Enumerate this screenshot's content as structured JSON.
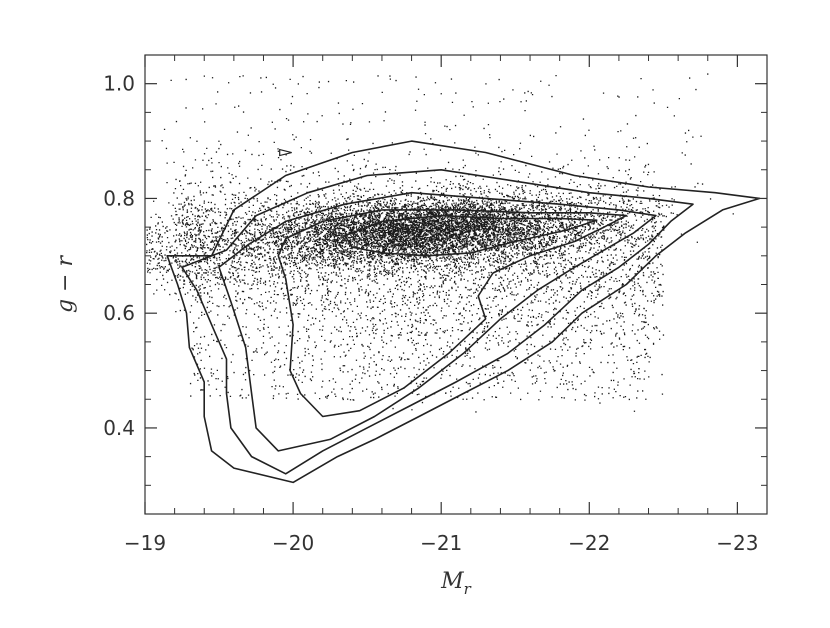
{
  "chart_data": {
    "type": "scatter",
    "title": "",
    "xlabel": {
      "main": "M",
      "sub": "r"
    },
    "ylabel": "g − r",
    "xlim": [
      -19,
      -23.2
    ],
    "ylim": [
      0.25,
      1.05
    ],
    "x_axis_reversed": true,
    "xticks": [
      {
        "value": -19,
        "label": "−19"
      },
      {
        "value": -20,
        "label": "−20"
      },
      {
        "value": -21,
        "label": "−21"
      },
      {
        "value": -22,
        "label": "−22"
      },
      {
        "value": -23,
        "label": "−23"
      }
    ],
    "yticks": [
      {
        "value": 0.4,
        "label": "0.4"
      },
      {
        "value": 0.6,
        "label": "0.6"
      },
      {
        "value": 0.8,
        "label": "0.8"
      },
      {
        "value": 1.0,
        "label": "1.0"
      }
    ],
    "grid": false,
    "legend": "none",
    "point_color": "#1a1a1a",
    "contour_color": "#222222",
    "scatter_density": {
      "main_cluster": {
        "center": [
          -20.9,
          0.745
        ],
        "spread": [
          0.55,
          0.028
        ]
      },
      "faint_tail": {
        "x_range": [
          -19.3,
          -22.4
        ],
        "y_range": [
          0.45,
          0.7
        ]
      },
      "outliers": {
        "x_range": [
          -19.1,
          -22.8
        ],
        "y_range": [
          0.82,
          1.02
        ]
      }
    },
    "contours": [
      {
        "level": "outer",
        "points": [
          [
            -19.45,
            0.7
          ],
          [
            -19.6,
            0.78
          ],
          [
            -19.95,
            0.84
          ],
          [
            -20.4,
            0.88
          ],
          [
            -20.8,
            0.9
          ],
          [
            -21.3,
            0.88
          ],
          [
            -21.9,
            0.84
          ],
          [
            -22.4,
            0.82
          ],
          [
            -22.85,
            0.81
          ],
          [
            -23.15,
            0.8
          ],
          [
            -22.9,
            0.78
          ],
          [
            -22.65,
            0.74
          ],
          [
            -22.45,
            0.7
          ],
          [
            -22.25,
            0.65
          ],
          [
            -21.95,
            0.6
          ],
          [
            -21.75,
            0.55
          ],
          [
            -21.45,
            0.5
          ],
          [
            -21.15,
            0.46
          ],
          [
            -20.85,
            0.42
          ],
          [
            -20.55,
            0.38
          ],
          [
            -20.3,
            0.35
          ],
          [
            -20.0,
            0.305
          ],
          [
            -19.6,
            0.33
          ],
          [
            -19.45,
            0.36
          ],
          [
            -19.4,
            0.42
          ],
          [
            -19.4,
            0.48
          ],
          [
            -19.3,
            0.54
          ],
          [
            -19.28,
            0.6
          ],
          [
            -19.22,
            0.65
          ],
          [
            -19.15,
            0.7
          ]
        ]
      },
      {
        "level": "second",
        "points": [
          [
            -19.55,
            0.71
          ],
          [
            -19.75,
            0.77
          ],
          [
            -20.1,
            0.81
          ],
          [
            -20.5,
            0.84
          ],
          [
            -21.0,
            0.85
          ],
          [
            -21.5,
            0.83
          ],
          [
            -22.0,
            0.81
          ],
          [
            -22.4,
            0.8
          ],
          [
            -22.7,
            0.79
          ],
          [
            -22.55,
            0.76
          ],
          [
            -22.4,
            0.72
          ],
          [
            -22.2,
            0.68
          ],
          [
            -21.95,
            0.64
          ],
          [
            -21.7,
            0.58
          ],
          [
            -21.45,
            0.53
          ],
          [
            -21.1,
            0.48
          ],
          [
            -20.8,
            0.44
          ],
          [
            -20.5,
            0.4
          ],
          [
            -20.2,
            0.36
          ],
          [
            -19.95,
            0.32
          ],
          [
            -19.72,
            0.35
          ],
          [
            -19.58,
            0.4
          ],
          [
            -19.55,
            0.46
          ],
          [
            -19.55,
            0.52
          ],
          [
            -19.45,
            0.58
          ],
          [
            -19.35,
            0.64
          ],
          [
            -19.25,
            0.68
          ]
        ]
      },
      {
        "level": "third",
        "points": [
          [
            -19.7,
            0.72
          ],
          [
            -19.95,
            0.76
          ],
          [
            -20.35,
            0.79
          ],
          [
            -20.8,
            0.81
          ],
          [
            -21.3,
            0.8
          ],
          [
            -21.8,
            0.79
          ],
          [
            -22.2,
            0.78
          ],
          [
            -22.45,
            0.77
          ],
          [
            -22.3,
            0.74
          ],
          [
            -22.1,
            0.71
          ],
          [
            -21.9,
            0.68
          ],
          [
            -21.65,
            0.64
          ],
          [
            -21.4,
            0.59
          ],
          [
            -21.15,
            0.53
          ],
          [
            -20.85,
            0.47
          ],
          [
            -20.55,
            0.42
          ],
          [
            -20.25,
            0.38
          ],
          [
            -19.9,
            0.36
          ],
          [
            -19.75,
            0.4
          ],
          [
            -19.72,
            0.46
          ],
          [
            -19.68,
            0.54
          ],
          [
            -19.58,
            0.62
          ],
          [
            -19.5,
            0.68
          ]
        ]
      },
      {
        "level": "fourth",
        "points": [
          [
            -19.95,
            0.73
          ],
          [
            -20.2,
            0.76
          ],
          [
            -20.6,
            0.78
          ],
          [
            -21.1,
            0.78
          ],
          [
            -21.6,
            0.775
          ],
          [
            -22.0,
            0.775
          ],
          [
            -22.25,
            0.77
          ],
          [
            -22.1,
            0.75
          ],
          [
            -21.9,
            0.725
          ],
          [
            -21.6,
            0.7
          ],
          [
            -21.35,
            0.67
          ],
          [
            -21.25,
            0.63
          ],
          [
            -21.3,
            0.59
          ],
          [
            -21.05,
            0.53
          ],
          [
            -20.75,
            0.47
          ],
          [
            -20.45,
            0.43
          ],
          [
            -20.2,
            0.42
          ],
          [
            -20.05,
            0.46
          ],
          [
            -19.98,
            0.5
          ],
          [
            -20.0,
            0.58
          ],
          [
            -19.95,
            0.66
          ],
          [
            -19.9,
            0.7
          ]
        ]
      },
      {
        "level": "inner",
        "points": [
          [
            -20.35,
            0.735
          ],
          [
            -20.6,
            0.76
          ],
          [
            -21.0,
            0.77
          ],
          [
            -21.4,
            0.765
          ],
          [
            -21.8,
            0.765
          ],
          [
            -22.05,
            0.762
          ],
          [
            -21.85,
            0.745
          ],
          [
            -21.5,
            0.725
          ],
          [
            -21.2,
            0.705
          ],
          [
            -20.9,
            0.7
          ],
          [
            -20.6,
            0.705
          ],
          [
            -20.4,
            0.715
          ]
        ]
      }
    ],
    "annotation_marker": {
      "x": -19.95,
      "y": 0.88,
      "shape": "small-triangle"
    }
  }
}
